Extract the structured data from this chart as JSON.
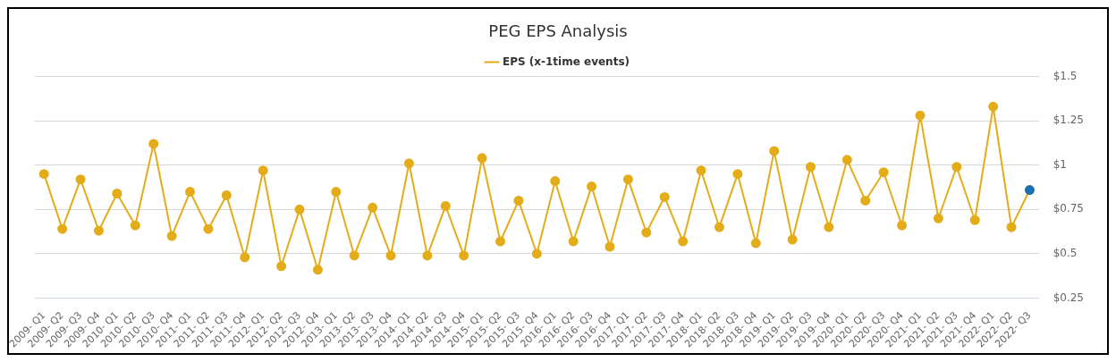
{
  "chart_data": {
    "type": "line",
    "title": "PEG EPS Analysis",
    "categories": [
      "2009- Q1",
      "2009- Q2",
      "2009- Q3",
      "2009- Q4",
      "2010- Q1",
      "2010- Q2",
      "2010- Q3",
      "2010- Q4",
      "2011- Q1",
      "2011- Q2",
      "2011- Q3",
      "2011- Q4",
      "2012- Q1",
      "2012- Q2",
      "2012- Q3",
      "2012- Q4",
      "2013- Q1",
      "2013- Q2",
      "2013- Q3",
      "2013- Q4",
      "2014- Q1",
      "2014- Q2",
      "2014- Q3",
      "2014- Q4",
      "2015- Q1",
      "2015- Q2",
      "2015- Q3",
      "2015- Q4",
      "2016- Q1",
      "2016- Q2",
      "2016- Q3",
      "2016- Q4",
      "2017- Q1",
      "2017- Q2",
      "2017- Q3",
      "2017- Q4",
      "2018- Q1",
      "2018- Q2",
      "2018- Q3",
      "2018- Q4",
      "2019- Q1",
      "2019- Q2",
      "2019- Q3",
      "2019- Q4",
      "2020- Q1",
      "2020- Q2",
      "2020- Q3",
      "2020- Q4",
      "2021- Q1",
      "2021- Q2",
      "2021- Q3",
      "2021- Q4",
      "2022- Q1",
      "2022- Q2",
      "2022- Q3"
    ],
    "series": [
      {
        "name": "EPS (x-1time events)",
        "color": "#e3ac18",
        "colors": [
          "#e3ac18",
          "#e3ac18",
          "#e3ac18",
          "#e3ac18",
          "#e3ac18",
          "#e3ac18",
          "#e3ac18",
          "#e3ac18",
          "#e3ac18",
          "#e3ac18",
          "#e3ac18",
          "#e3ac18",
          "#e3ac18",
          "#e3ac18",
          "#e3ac18",
          "#e3ac18",
          "#e3ac18",
          "#e3ac18",
          "#e3ac18",
          "#e3ac18",
          "#e3ac18",
          "#e3ac18",
          "#e3ac18",
          "#e3ac18",
          "#e3ac18",
          "#e3ac18",
          "#e3ac18",
          "#e3ac18",
          "#e3ac18",
          "#e3ac18",
          "#e3ac18",
          "#e3ac18",
          "#e3ac18",
          "#e3ac18",
          "#e3ac18",
          "#e3ac18",
          "#e3ac18",
          "#e3ac18",
          "#e3ac18",
          "#e3ac18",
          "#e3ac18",
          "#e3ac18",
          "#e3ac18",
          "#e3ac18",
          "#e3ac18",
          "#e3ac18",
          "#e3ac18",
          "#e3ac18",
          "#e3ac18",
          "#e3ac18",
          "#e3ac18",
          "#e3ac18",
          "#e3ac18",
          "#e3ac18",
          "#1b6fae"
        ],
        "values": [
          0.95,
          0.64,
          0.92,
          0.63,
          0.84,
          0.66,
          1.12,
          0.6,
          0.85,
          0.64,
          0.83,
          0.48,
          0.97,
          0.43,
          0.75,
          0.41,
          0.85,
          0.49,
          0.76,
          0.49,
          1.01,
          0.49,
          0.77,
          0.49,
          1.04,
          0.57,
          0.8,
          0.5,
          0.91,
          0.57,
          0.88,
          0.54,
          0.92,
          0.62,
          0.82,
          0.57,
          0.97,
          0.65,
          0.95,
          0.56,
          1.08,
          0.58,
          0.99,
          0.65,
          1.03,
          0.8,
          0.96,
          0.66,
          1.28,
          0.7,
          0.99,
          0.69,
          1.33,
          0.65,
          0.86
        ]
      }
    ],
    "ylim": [
      0.25,
      1.5
    ],
    "yticks": [
      {
        "value": 0.25,
        "label": "$0.25"
      },
      {
        "value": 0.5,
        "label": "$0.5"
      },
      {
        "value": 0.75,
        "label": "$0.75"
      },
      {
        "value": 1,
        "label": "$1"
      },
      {
        "value": 1.25,
        "label": "$1.25"
      },
      {
        "value": 1.5,
        "label": "$1.5"
      }
    ],
    "grid": "y",
    "legend": "top",
    "marker": "circle",
    "line_style": "solid"
  }
}
